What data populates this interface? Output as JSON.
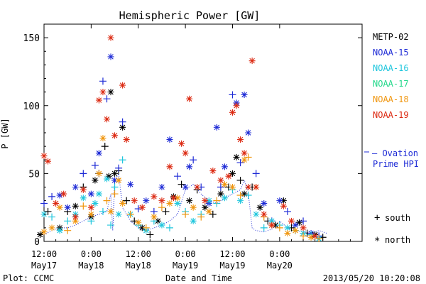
{
  "chart_data": {
    "type": "scatter",
    "title": "Hemispheric Power [GW]",
    "xlabel": "Date and Time",
    "ylabel": "P [GW]",
    "xlim": [
      0,
      81
    ],
    "ylim": [
      0,
      160
    ],
    "y_ticks": [
      0,
      50,
      100,
      150
    ],
    "x_ticks": [
      {
        "x": 0,
        "top": "12:00",
        "bottom": "May17"
      },
      {
        "x": 12,
        "top": "0:00",
        "bottom": "May18"
      },
      {
        "x": 24,
        "top": "12:00",
        "bottom": "May18"
      },
      {
        "x": 36,
        "top": "0:00",
        "bottom": "May19"
      },
      {
        "x": 48,
        "top": "12:00",
        "bottom": "May19"
      },
      {
        "x": 60,
        "top": "0:00",
        "bottom": "May20"
      }
    ],
    "legend": {
      "position": "right",
      "items": [
        {
          "name": "METP-02",
          "color": "#000000"
        },
        {
          "name": "NOAA-15",
          "color": "#1e2bd6"
        },
        {
          "name": "NOAA-16",
          "color": "#1fc6dd"
        },
        {
          "name": "NOAA-17",
          "color": "#22d88a"
        },
        {
          "name": "NOAA-18",
          "color": "#f0960f"
        },
        {
          "name": "NOAA-19",
          "color": "#dc2a12"
        }
      ],
      "ovation": {
        "line1": "— Ovation",
        "line2": "Prime HPI",
        "color": "#1e2bd6"
      },
      "south": {
        "symbol": "+",
        "label": "south"
      },
      "north": {
        "symbol": "*",
        "label": "north"
      }
    },
    "footer_left": "Plot: CCMC",
    "footer_right": "2013/05/20 10:20:08",
    "series": [
      {
        "color": "#000000",
        "points": [
          [
            -1,
            5,
            "*"
          ],
          [
            1,
            22,
            "+"
          ],
          [
            4,
            10,
            "*"
          ],
          [
            6,
            22,
            "+"
          ],
          [
            8,
            26,
            "*"
          ],
          [
            10,
            40,
            "+"
          ],
          [
            12,
            18,
            "*"
          ],
          [
            13,
            45,
            "*"
          ],
          [
            14,
            50,
            "+"
          ],
          [
            15.5,
            70,
            "+"
          ],
          [
            16.5,
            48,
            "*"
          ],
          [
            17,
            110,
            "*"
          ],
          [
            18,
            50,
            "*"
          ],
          [
            19,
            52,
            "+"
          ],
          [
            20,
            84,
            "*"
          ],
          [
            21,
            30,
            "+"
          ],
          [
            23,
            15,
            "+"
          ],
          [
            25,
            10,
            "*"
          ],
          [
            27,
            5,
            "+"
          ],
          [
            29,
            15,
            "*"
          ],
          [
            31,
            22,
            "+"
          ],
          [
            33,
            33,
            "*"
          ],
          [
            35,
            42,
            "+"
          ],
          [
            37,
            30,
            "*"
          ],
          [
            39,
            38,
            "+"
          ],
          [
            41,
            25,
            "*"
          ],
          [
            43,
            20,
            "+"
          ],
          [
            45,
            35,
            "*"
          ],
          [
            47,
            40,
            "+"
          ],
          [
            48,
            50,
            "*"
          ],
          [
            49,
            62,
            "*"
          ],
          [
            50,
            45,
            "+"
          ],
          [
            51,
            35,
            "*"
          ],
          [
            53,
            40,
            "+"
          ],
          [
            55,
            25,
            "*"
          ],
          [
            57,
            15,
            "+"
          ],
          [
            59,
            12,
            "*"
          ],
          [
            61,
            30,
            "*"
          ],
          [
            63,
            10,
            "+"
          ],
          [
            65,
            14,
            "*"
          ],
          [
            67,
            6,
            "+"
          ],
          [
            69,
            5,
            "*"
          ],
          [
            71,
            3,
            "+"
          ]
        ]
      },
      {
        "color": "#1e2bd6",
        "points": [
          [
            0,
            28,
            "+"
          ],
          [
            2,
            33,
            "+"
          ],
          [
            4,
            34,
            "*"
          ],
          [
            6,
            25,
            "*"
          ],
          [
            8,
            40,
            "*"
          ],
          [
            10,
            50,
            "+"
          ],
          [
            12,
            35,
            "*"
          ],
          [
            13,
            56,
            "+"
          ],
          [
            14,
            65,
            "*"
          ],
          [
            15,
            118,
            "+"
          ],
          [
            16,
            105,
            "+"
          ],
          [
            17,
            136,
            "*"
          ],
          [
            18,
            45,
            "*"
          ],
          [
            19,
            54,
            "+"
          ],
          [
            20,
            88,
            "+"
          ],
          [
            22,
            42,
            "*"
          ],
          [
            24,
            24,
            "+"
          ],
          [
            26,
            30,
            "*"
          ],
          [
            28,
            22,
            "+"
          ],
          [
            30,
            40,
            "*"
          ],
          [
            32,
            75,
            "*"
          ],
          [
            34,
            48,
            "+"
          ],
          [
            36,
            40,
            "*"
          ],
          [
            37,
            55,
            "*"
          ],
          [
            38,
            60,
            "+"
          ],
          [
            40,
            40,
            "+"
          ],
          [
            42,
            28,
            "*"
          ],
          [
            44,
            84,
            "*"
          ],
          [
            45,
            40,
            "+"
          ],
          [
            46,
            55,
            "*"
          ],
          [
            48,
            108,
            "+"
          ],
          [
            49,
            102,
            "*"
          ],
          [
            50,
            58,
            "+"
          ],
          [
            51,
            108,
            "*"
          ],
          [
            52,
            80,
            "*"
          ],
          [
            54,
            50,
            "+"
          ],
          [
            56,
            28,
            "*"
          ],
          [
            58,
            15,
            "+"
          ],
          [
            60,
            30,
            "*"
          ],
          [
            62,
            22,
            "+"
          ],
          [
            64,
            12,
            "*"
          ],
          [
            66,
            15,
            "+"
          ],
          [
            68,
            6,
            "*"
          ],
          [
            70,
            4,
            "+"
          ]
        ]
      },
      {
        "color": "#1fc6dd",
        "points": [
          [
            0,
            20,
            "*"
          ],
          [
            2,
            18,
            "+"
          ],
          [
            4,
            8,
            "*"
          ],
          [
            6,
            15,
            "+"
          ],
          [
            8,
            20,
            "*"
          ],
          [
            10,
            32,
            "*"
          ],
          [
            12,
            15,
            "+"
          ],
          [
            13,
            28,
            "*"
          ],
          [
            14,
            35,
            "*"
          ],
          [
            15,
            22,
            "+"
          ],
          [
            16,
            46,
            "*"
          ],
          [
            17,
            12,
            "+"
          ],
          [
            18,
            40,
            "+"
          ],
          [
            19,
            20,
            "*"
          ],
          [
            20,
            60,
            "+"
          ],
          [
            22,
            20,
            "*"
          ],
          [
            24,
            12,
            "+"
          ],
          [
            26,
            8,
            "*"
          ],
          [
            28,
            15,
            "+"
          ],
          [
            30,
            12,
            "*"
          ],
          [
            32,
            10,
            "+"
          ],
          [
            34,
            28,
            "*"
          ],
          [
            36,
            22,
            "+"
          ],
          [
            38,
            15,
            "*"
          ],
          [
            40,
            20,
            "+"
          ],
          [
            42,
            30,
            "*"
          ],
          [
            44,
            28,
            "+"
          ],
          [
            46,
            32,
            "*"
          ],
          [
            48,
            38,
            "+"
          ],
          [
            50,
            30,
            "*"
          ],
          [
            52,
            34,
            "+"
          ],
          [
            54,
            20,
            "*"
          ],
          [
            56,
            10,
            "+"
          ],
          [
            58,
            15,
            "*"
          ],
          [
            60,
            12,
            "+"
          ],
          [
            62,
            10,
            "*"
          ],
          [
            64,
            8,
            "+"
          ],
          [
            66,
            6,
            "*"
          ],
          [
            68,
            5,
            "+"
          ],
          [
            70,
            2,
            "*"
          ]
        ]
      },
      {
        "color": "#f0960f",
        "points": [
          [
            0,
            7,
            "*"
          ],
          [
            2,
            10,
            "*"
          ],
          [
            4,
            25,
            "*"
          ],
          [
            6,
            8,
            "+"
          ],
          [
            8,
            15,
            "*"
          ],
          [
            10,
            26,
            "+"
          ],
          [
            12,
            20,
            "*"
          ],
          [
            14,
            50,
            "*"
          ],
          [
            15,
            76,
            "*"
          ],
          [
            16,
            30,
            "+"
          ],
          [
            17,
            22,
            "*"
          ],
          [
            18,
            35,
            "+"
          ],
          [
            19,
            45,
            "*"
          ],
          [
            20,
            28,
            "*"
          ],
          [
            22,
            20,
            "+"
          ],
          [
            24,
            14,
            "*"
          ],
          [
            26,
            10,
            "+"
          ],
          [
            28,
            18,
            "*"
          ],
          [
            30,
            25,
            "+"
          ],
          [
            32,
            28,
            "*"
          ],
          [
            34,
            32,
            "*"
          ],
          [
            36,
            20,
            "+"
          ],
          [
            38,
            25,
            "*"
          ],
          [
            40,
            18,
            "+"
          ],
          [
            42,
            22,
            "*"
          ],
          [
            44,
            30,
            "+"
          ],
          [
            46,
            42,
            "*"
          ],
          [
            48,
            40,
            "*"
          ],
          [
            50,
            34,
            "+"
          ],
          [
            51,
            60,
            "*"
          ],
          [
            52,
            62,
            "+"
          ],
          [
            54,
            40,
            "*"
          ],
          [
            56,
            18,
            "+"
          ],
          [
            58,
            12,
            "*"
          ],
          [
            60,
            10,
            "+"
          ],
          [
            62,
            6,
            "*"
          ],
          [
            64,
            8,
            "*"
          ],
          [
            66,
            4,
            "+"
          ],
          [
            68,
            3,
            "*"
          ],
          [
            70,
            2,
            "+"
          ]
        ]
      },
      {
        "color": "#dc2a12",
        "points": [
          [
            0,
            63,
            "*"
          ],
          [
            1,
            59,
            "*"
          ],
          [
            3,
            28,
            "*"
          ],
          [
            5,
            35,
            "*"
          ],
          [
            8,
            18,
            "*"
          ],
          [
            10,
            38,
            "*"
          ],
          [
            12,
            25,
            "*"
          ],
          [
            14,
            104,
            "*"
          ],
          [
            15,
            110,
            "*"
          ],
          [
            16,
            90,
            "*"
          ],
          [
            17,
            150,
            "*"
          ],
          [
            18,
            78,
            "*"
          ],
          [
            20,
            115,
            "*"
          ],
          [
            21,
            75,
            "*"
          ],
          [
            23,
            30,
            "*"
          ],
          [
            25,
            25,
            "*"
          ],
          [
            28,
            33,
            "*"
          ],
          [
            30,
            30,
            "*"
          ],
          [
            32,
            55,
            "*"
          ],
          [
            33,
            32,
            "*"
          ],
          [
            35,
            72,
            "*"
          ],
          [
            36,
            65,
            "*"
          ],
          [
            37,
            105,
            "*"
          ],
          [
            39,
            40,
            "*"
          ],
          [
            41,
            30,
            "*"
          ],
          [
            43,
            52,
            "*"
          ],
          [
            45,
            45,
            "*"
          ],
          [
            47,
            48,
            "*"
          ],
          [
            48,
            95,
            "*"
          ],
          [
            49,
            100,
            "*"
          ],
          [
            50,
            75,
            "*"
          ],
          [
            51,
            65,
            "*"
          ],
          [
            52,
            40,
            "*"
          ],
          [
            53,
            133,
            "*"
          ],
          [
            54,
            40,
            "*"
          ],
          [
            56,
            20,
            "*"
          ],
          [
            58,
            12,
            "*"
          ],
          [
            61,
            26,
            "*"
          ],
          [
            63,
            15,
            "*"
          ],
          [
            66,
            10,
            "*"
          ],
          [
            69,
            4,
            "*"
          ]
        ]
      }
    ],
    "ovation": [
      [
        0,
        5
      ],
      [
        2,
        8
      ],
      [
        4,
        10
      ],
      [
        6,
        10
      ],
      [
        8,
        12
      ],
      [
        10,
        15
      ],
      [
        12,
        18
      ],
      [
        14,
        20
      ],
      [
        16,
        22
      ],
      [
        17,
        35
      ],
      [
        17.5,
        8
      ],
      [
        18,
        45
      ],
      [
        19,
        50
      ],
      [
        20,
        25
      ],
      [
        22,
        15
      ],
      [
        24,
        10
      ],
      [
        26,
        8
      ],
      [
        28,
        10
      ],
      [
        30,
        12
      ],
      [
        32,
        15
      ],
      [
        34,
        20
      ],
      [
        36,
        38
      ],
      [
        38,
        42
      ],
      [
        40,
        35
      ],
      [
        42,
        30
      ],
      [
        44,
        28
      ],
      [
        46,
        32
      ],
      [
        48,
        35
      ],
      [
        50,
        38
      ],
      [
        51,
        45
      ],
      [
        52,
        36
      ],
      [
        53,
        10
      ],
      [
        54,
        8
      ],
      [
        56,
        7
      ],
      [
        58,
        9
      ],
      [
        60,
        15
      ],
      [
        62,
        10
      ],
      [
        64,
        8
      ],
      [
        66,
        7
      ],
      [
        68,
        6
      ],
      [
        70,
        8
      ],
      [
        72,
        6
      ]
    ]
  }
}
